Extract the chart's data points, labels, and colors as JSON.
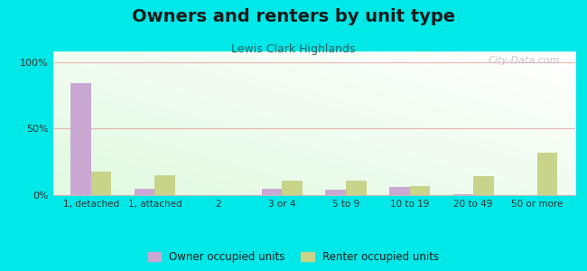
{
  "title": "Owners and renters by unit type",
  "subtitle": "Lewis Clark Highlands",
  "categories": [
    "1, detached",
    "1, attached",
    "2",
    "3 or 4",
    "5 to 9",
    "10 to 19",
    "20 to 49",
    "50 or more"
  ],
  "owner_values": [
    84,
    5,
    0,
    5,
    4,
    6,
    1,
    0
  ],
  "renter_values": [
    18,
    15,
    0,
    11,
    11,
    7,
    14,
    32
  ],
  "owner_color": "#c9a8d4",
  "renter_color": "#c8d48a",
  "background_color": "#00e8e8",
  "title_fontsize": 14,
  "subtitle_fontsize": 9,
  "ylabel_ticks": [
    "0%",
    "50%",
    "100%"
  ],
  "ytick_vals": [
    0,
    50,
    100
  ],
  "ylim": [
    0,
    108
  ],
  "legend_labels": [
    "Owner occupied units",
    "Renter occupied units"
  ],
  "bar_width": 0.32,
  "watermark": "City-Data.com"
}
